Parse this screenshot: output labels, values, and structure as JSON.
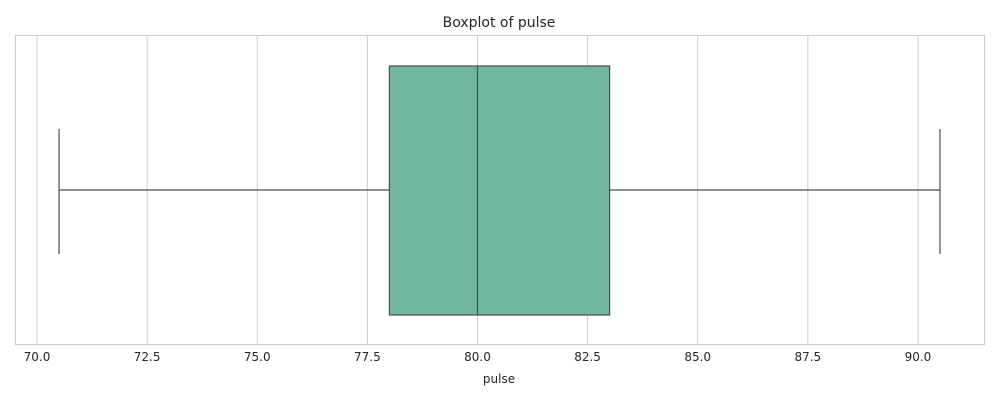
{
  "chart_data": {
    "type": "boxplot",
    "title": "Boxplot of pulse",
    "xlabel": "pulse",
    "ylabel": "",
    "orientation": "horizontal",
    "xlim": [
      69.5,
      91.5
    ],
    "x_ticks": [
      70.0,
      72.5,
      75.0,
      77.5,
      80.0,
      82.5,
      85.0,
      87.5,
      90.0
    ],
    "x_tick_labels": [
      "70.0",
      "72.5",
      "75.0",
      "77.5",
      "80.0",
      "82.5",
      "85.0",
      "87.5",
      "90.0"
    ],
    "grid": "vertical",
    "series": [
      {
        "whisker_low": 70.5,
        "q1": 78.0,
        "median": 80.0,
        "q3": 83.0,
        "whisker_high": 90.5
      }
    ],
    "colors": {
      "box_fill": "#72b6a1",
      "line": "#4d4d4d",
      "grid": "#cccccc",
      "frame": "#cccccc"
    }
  }
}
